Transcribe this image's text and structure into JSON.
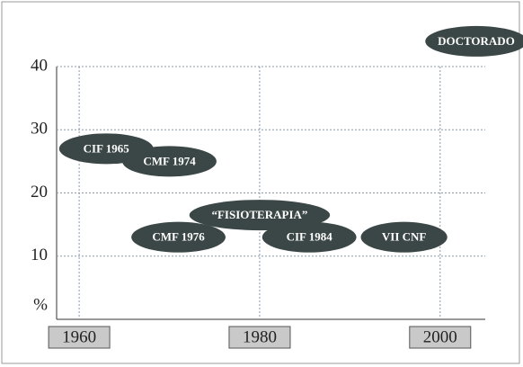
{
  "chart_data": {
    "type": "scatter",
    "y_label": "%",
    "xlim": [
      1957.5,
      2005
    ],
    "ylim": [
      0,
      40
    ],
    "xticks": [
      1960,
      1980,
      2000
    ],
    "yticks": [
      10,
      20,
      30,
      40
    ],
    "grid": true,
    "color": "#3b4646",
    "series": [
      {
        "x": [
          1963,
          1970,
          1971,
          1980,
          1985.5,
          1996,
          2004
        ],
        "values": [
          27,
          25,
          13,
          16.5,
          13,
          13,
          44
        ],
        "point_labels": [
          "CIF 1965",
          "CMF 1974",
          "CMF 1976",
          "“FISIOTERAPIA”",
          "CIF 1984",
          "VII CNF",
          "DOCTORADO"
        ]
      }
    ]
  }
}
